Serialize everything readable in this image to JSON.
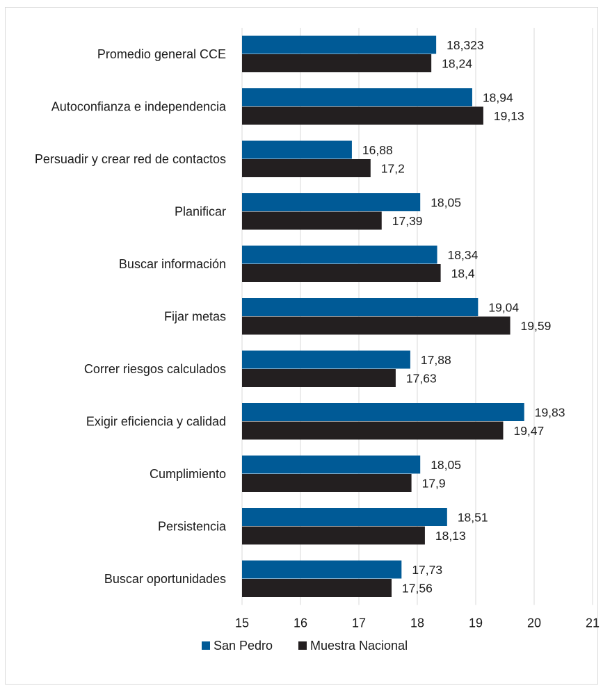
{
  "chart_data": {
    "type": "bar",
    "orientation": "horizontal",
    "title": "",
    "xlabel": "",
    "ylabel": "",
    "xlim": [
      15,
      21
    ],
    "xticks": [
      "15",
      "16",
      "17",
      "18",
      "19",
      "20",
      "21"
    ],
    "grid": "vertical",
    "legend_position": "bottom",
    "categories": [
      "Promedio general CCE",
      "Autoconfianza e independencia",
      "Persuadir y crear red de contactos",
      "Planificar",
      "Buscar información",
      "Fijar metas",
      "Correr riesgos calculados",
      "Exigir eficiencia y calidad",
      "Cumplimiento",
      "Persistencia",
      "Buscar oportunidades"
    ],
    "series": [
      {
        "name": "San Pedro",
        "color": "#005a96",
        "values": [
          18.323,
          18.94,
          16.88,
          18.05,
          18.34,
          19.04,
          17.88,
          19.83,
          18.05,
          18.51,
          17.73
        ],
        "labels": [
          "18,323",
          "18,94",
          "16,88",
          "18,05",
          "18,34",
          "19,04",
          "17,88",
          "19,83",
          "18,05",
          "18,51",
          "17,73"
        ]
      },
      {
        "name": "Muestra Nacional",
        "color": "#231f20",
        "values": [
          18.24,
          19.13,
          17.2,
          17.39,
          18.4,
          19.59,
          17.63,
          19.47,
          17.9,
          18.13,
          17.56
        ],
        "labels": [
          "18,24",
          "19,13",
          "17,2",
          "17,39",
          "18,4",
          "19,59",
          "17,63",
          "19,47",
          "17,9",
          "18,13",
          "17,56"
        ]
      }
    ]
  }
}
